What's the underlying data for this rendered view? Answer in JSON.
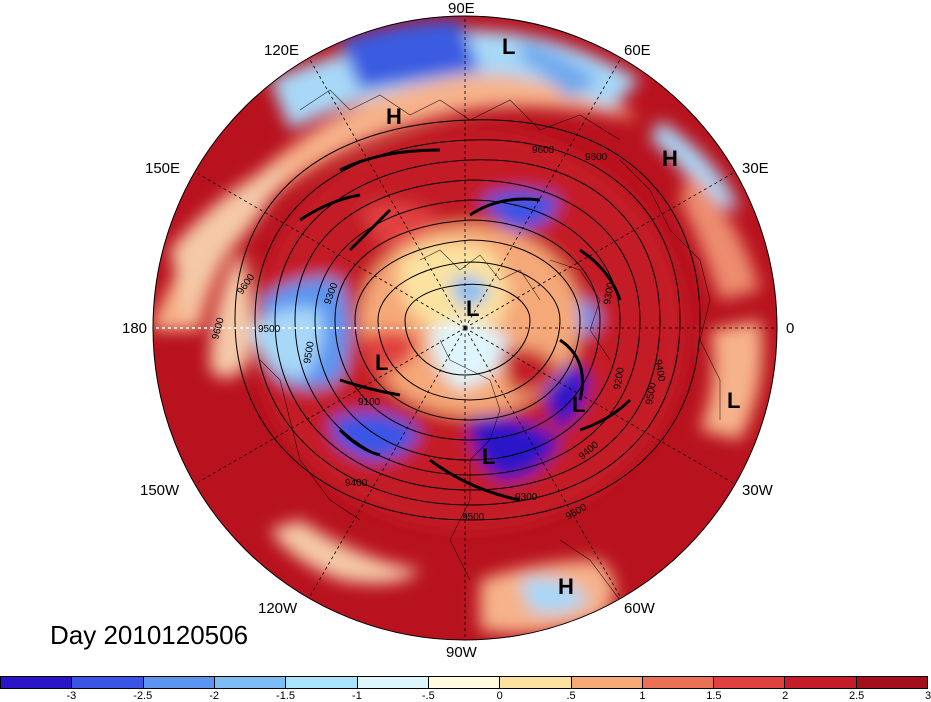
{
  "title": "Day 2010120506",
  "longitude_labels": {
    "e90": "90E",
    "e60": "60E",
    "e30": "30E",
    "zero": "0",
    "w30": "30W",
    "w60": "60W",
    "w90": "90W",
    "w120": "120W",
    "w150": "150W",
    "d180": "180",
    "e150": "150E",
    "e120": "120E"
  },
  "pressure_systems": {
    "h1": "H",
    "h2": "H",
    "h3": "H",
    "l1": "L",
    "l2": "L",
    "l3": "L",
    "l4": "L",
    "l5": "L",
    "l6": "L"
  },
  "contour_labels": {
    "c1": "9600",
    "c2": "9600",
    "c3": "9500",
    "c4": "9500",
    "c5": "9300",
    "c6": "9100",
    "c7": "9400",
    "c8": "9500",
    "c9": "9400",
    "c10": "9300",
    "c11": "9600",
    "c12": "9200",
    "c13": "9300",
    "c14": "9400",
    "c15": "9600",
    "c16": "9500",
    "c17": "9600"
  },
  "colorbar": {
    "colors": [
      "#2a16c8",
      "#3a54e6",
      "#5c94f0",
      "#7ebcf5",
      "#a8e4fb",
      "#dff5fc",
      "#fffae0",
      "#fbe2a0",
      "#f5a878",
      "#ec7055",
      "#e04040",
      "#c41c28",
      "#a50f1c"
    ],
    "tick_labels": [
      "-3",
      "-2.5",
      "-2",
      "-1.5",
      "-1",
      "-.5",
      "0",
      ".5",
      "1",
      "1.5",
      "2",
      "2.5",
      "3"
    ]
  }
}
